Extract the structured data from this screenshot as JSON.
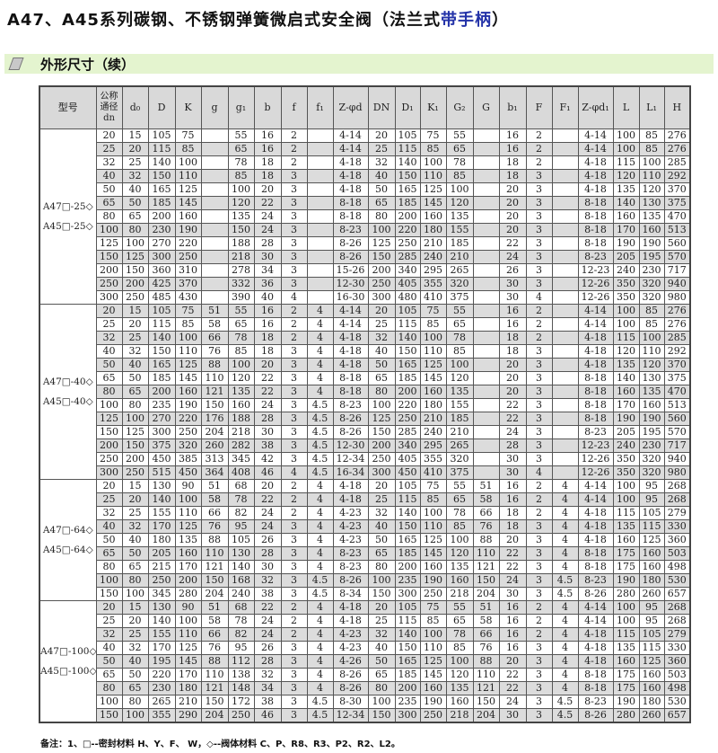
{
  "title": {
    "main": "A47、A45系列碳钢、不锈钢弹簧微启式安全阀（法兰式",
    "accent": "带手柄",
    "end": "）",
    "accent_color": "#2332a8"
  },
  "section": {
    "label": "外形尺寸（续）",
    "icon": "parallelogram-bullet-icon",
    "bg_color": "#e4f4cf"
  },
  "table": {
    "headers": [
      "型号",
      "公称通径dn",
      "d₀",
      "D",
      "K",
      "g",
      "g₁",
      "b",
      "f",
      "f₁",
      "Z-φd",
      "DN",
      "D₁",
      "K₁",
      "G₂",
      "G",
      "b₁",
      "F",
      "F₁",
      "Z-φd₁",
      "L",
      "L₁",
      "H"
    ],
    "groups": [
      {
        "model": [
          "A47□-25◇",
          "A45□-25◇"
        ],
        "rows": [
          [
            "20",
            "15",
            "105",
            "75",
            "",
            "55",
            "16",
            "2",
            "",
            "4-14",
            "20",
            "105",
            "75",
            "55",
            "",
            "16",
            "2",
            "",
            "4-14",
            "100",
            "85",
            "276"
          ],
          [
            "25",
            "20",
            "115",
            "85",
            "",
            "65",
            "16",
            "2",
            "",
            "4-14",
            "25",
            "115",
            "85",
            "65",
            "",
            "16",
            "2",
            "",
            "4-14",
            "100",
            "85",
            "276"
          ],
          [
            "32",
            "25",
            "140",
            "100",
            "",
            "78",
            "18",
            "2",
            "",
            "4-18",
            "32",
            "140",
            "100",
            "78",
            "",
            "18",
            "2",
            "",
            "4-18",
            "115",
            "100",
            "285"
          ],
          [
            "40",
            "32",
            "150",
            "110",
            "",
            "85",
            "18",
            "3",
            "",
            "4-18",
            "40",
            "150",
            "110",
            "85",
            "",
            "18",
            "3",
            "",
            "4-18",
            "120",
            "110",
            "292"
          ],
          [
            "50",
            "40",
            "165",
            "125",
            "",
            "100",
            "20",
            "3",
            "",
            "4-18",
            "50",
            "165",
            "125",
            "100",
            "",
            "20",
            "3",
            "",
            "4-18",
            "135",
            "120",
            "370"
          ],
          [
            "65",
            "50",
            "185",
            "145",
            "",
            "120",
            "22",
            "3",
            "",
            "8-18",
            "65",
            "185",
            "145",
            "120",
            "",
            "20",
            "3",
            "",
            "8-18",
            "140",
            "130",
            "375"
          ],
          [
            "80",
            "65",
            "200",
            "160",
            "",
            "135",
            "24",
            "3",
            "",
            "8-18",
            "80",
            "200",
            "160",
            "135",
            "",
            "20",
            "3",
            "",
            "8-18",
            "160",
            "135",
            "470"
          ],
          [
            "100",
            "80",
            "230",
            "190",
            "",
            "150",
            "24",
            "3",
            "",
            "8-23",
            "100",
            "220",
            "180",
            "155",
            "",
            "20",
            "3",
            "",
            "8-18",
            "170",
            "160",
            "513"
          ],
          [
            "125",
            "100",
            "270",
            "220",
            "",
            "188",
            "28",
            "3",
            "",
            "8-26",
            "125",
            "250",
            "210",
            "185",
            "",
            "22",
            "3",
            "",
            "8-18",
            "190",
            "190",
            "560"
          ],
          [
            "150",
            "125",
            "300",
            "250",
            "",
            "218",
            "30",
            "3",
            "",
            "8-26",
            "150",
            "285",
            "240",
            "210",
            "",
            "24",
            "3",
            "",
            "8-23",
            "205",
            "195",
            "570"
          ],
          [
            "200",
            "150",
            "360",
            "310",
            "",
            "278",
            "34",
            "3",
            "",
            "15-26",
            "200",
            "340",
            "295",
            "265",
            "",
            "26",
            "3",
            "",
            "12-23",
            "240",
            "230",
            "717"
          ],
          [
            "250",
            "200",
            "425",
            "370",
            "",
            "332",
            "36",
            "3",
            "",
            "12-30",
            "250",
            "405",
            "355",
            "320",
            "",
            "30",
            "3",
            "",
            "12-26",
            "350",
            "320",
            "940"
          ],
          [
            "300",
            "250",
            "485",
            "430",
            "",
            "390",
            "40",
            "4",
            "",
            "16-30",
            "300",
            "480",
            "410",
            "375",
            "",
            "30",
            "4",
            "",
            "12-26",
            "350",
            "320",
            "980"
          ]
        ]
      },
      {
        "model": [
          "A47□-40◇",
          "A45□-40◇"
        ],
        "rows": [
          [
            "20",
            "15",
            "105",
            "75",
            "51",
            "55",
            "16",
            "2",
            "4",
            "4-14",
            "20",
            "105",
            "75",
            "55",
            "",
            "16",
            "2",
            "",
            "4-14",
            "100",
            "85",
            "276"
          ],
          [
            "25",
            "20",
            "115",
            "85",
            "58",
            "65",
            "16",
            "2",
            "4",
            "4-14",
            "25",
            "115",
            "85",
            "65",
            "",
            "16",
            "2",
            "",
            "4-14",
            "100",
            "85",
            "276"
          ],
          [
            "32",
            "25",
            "140",
            "100",
            "66",
            "78",
            "18",
            "2",
            "4",
            "4-18",
            "32",
            "140",
            "100",
            "78",
            "",
            "18",
            "2",
            "",
            "4-18",
            "115",
            "100",
            "285"
          ],
          [
            "40",
            "32",
            "150",
            "110",
            "76",
            "85",
            "18",
            "3",
            "4",
            "4-18",
            "40",
            "150",
            "110",
            "85",
            "",
            "18",
            "3",
            "",
            "4-18",
            "120",
            "110",
            "292"
          ],
          [
            "50",
            "40",
            "165",
            "125",
            "88",
            "100",
            "20",
            "3",
            "4",
            "4-18",
            "50",
            "165",
            "125",
            "100",
            "",
            "20",
            "3",
            "",
            "4-18",
            "135",
            "120",
            "370"
          ],
          [
            "65",
            "50",
            "185",
            "145",
            "110",
            "120",
            "22",
            "3",
            "4",
            "8-18",
            "65",
            "185",
            "145",
            "120",
            "",
            "20",
            "3",
            "",
            "8-18",
            "140",
            "130",
            "375"
          ],
          [
            "80",
            "65",
            "200",
            "160",
            "121",
            "135",
            "22",
            "3",
            "4",
            "8-18",
            "80",
            "200",
            "160",
            "135",
            "",
            "20",
            "3",
            "",
            "8-18",
            "160",
            "135",
            "470"
          ],
          [
            "100",
            "80",
            "235",
            "190",
            "150",
            "160",
            "24",
            "3",
            "4.5",
            "8-23",
            "100",
            "220",
            "180",
            "155",
            "",
            "22",
            "3",
            "",
            "8-18",
            "170",
            "160",
            "513"
          ],
          [
            "125",
            "100",
            "270",
            "220",
            "176",
            "188",
            "28",
            "3",
            "4.5",
            "8-26",
            "125",
            "250",
            "210",
            "185",
            "",
            "22",
            "3",
            "",
            "8-18",
            "190",
            "190",
            "560"
          ],
          [
            "150",
            "125",
            "300",
            "250",
            "204",
            "218",
            "30",
            "3",
            "4.5",
            "8-26",
            "150",
            "285",
            "240",
            "210",
            "",
            "24",
            "3",
            "",
            "8-23",
            "205",
            "195",
            "570"
          ],
          [
            "200",
            "150",
            "375",
            "320",
            "260",
            "282",
            "38",
            "3",
            "4.5",
            "12-30",
            "200",
            "340",
            "295",
            "265",
            "",
            "28",
            "3",
            "",
            "12-23",
            "240",
            "230",
            "717"
          ],
          [
            "250",
            "200",
            "450",
            "385",
            "313",
            "345",
            "42",
            "3",
            "4.5",
            "12-34",
            "250",
            "405",
            "355",
            "320",
            "",
            "30",
            "3",
            "",
            "12-26",
            "350",
            "320",
            "940"
          ],
          [
            "300",
            "250",
            "515",
            "450",
            "364",
            "408",
            "46",
            "4",
            "4.5",
            "16-34",
            "300",
            "450",
            "410",
            "375",
            "",
            "30",
            "4",
            "",
            "12-26",
            "350",
            "320",
            "980"
          ]
        ]
      },
      {
        "model": [
          "A47□-64◇",
          "A45□-64◇"
        ],
        "rows": [
          [
            "20",
            "15",
            "130",
            "90",
            "51",
            "68",
            "20",
            "2",
            "4",
            "4-18",
            "20",
            "105",
            "75",
            "55",
            "51",
            "16",
            "2",
            "4",
            "4-14",
            "100",
            "95",
            "268"
          ],
          [
            "25",
            "20",
            "140",
            "100",
            "58",
            "78",
            "22",
            "2",
            "4",
            "4-18",
            "25",
            "115",
            "85",
            "65",
            "58",
            "16",
            "2",
            "4",
            "4-14",
            "100",
            "95",
            "268"
          ],
          [
            "32",
            "25",
            "155",
            "110",
            "66",
            "82",
            "24",
            "2",
            "4",
            "4-23",
            "32",
            "140",
            "100",
            "78",
            "66",
            "18",
            "2",
            "4",
            "4-18",
            "115",
            "105",
            "279"
          ],
          [
            "40",
            "32",
            "170",
            "125",
            "76",
            "95",
            "24",
            "3",
            "4",
            "4-23",
            "40",
            "150",
            "110",
            "85",
            "76",
            "18",
            "3",
            "4",
            "4-18",
            "135",
            "115",
            "330"
          ],
          [
            "50",
            "40",
            "180",
            "135",
            "88",
            "105",
            "26",
            "3",
            "4",
            "4-23",
            "50",
            "165",
            "125",
            "100",
            "88",
            "20",
            "3",
            "4",
            "4-18",
            "160",
            "125",
            "360"
          ],
          [
            "65",
            "50",
            "205",
            "160",
            "110",
            "130",
            "28",
            "3",
            "4",
            "8-23",
            "65",
            "185",
            "145",
            "120",
            "110",
            "22",
            "3",
            "4",
            "8-18",
            "175",
            "160",
            "503"
          ],
          [
            "80",
            "65",
            "215",
            "170",
            "121",
            "140",
            "30",
            "3",
            "4",
            "8-23",
            "80",
            "200",
            "160",
            "135",
            "121",
            "22",
            "3",
            "4",
            "8-18",
            "175",
            "160",
            "498"
          ],
          [
            "100",
            "80",
            "250",
            "200",
            "150",
            "168",
            "32",
            "3",
            "4.5",
            "8-26",
            "100",
            "235",
            "190",
            "160",
            "150",
            "24",
            "3",
            "4.5",
            "8-23",
            "190",
            "180",
            "530"
          ],
          [
            "150",
            "100",
            "345",
            "280",
            "204",
            "240",
            "38",
            "3",
            "4.5",
            "8-34",
            "150",
            "300",
            "250",
            "218",
            "204",
            "30",
            "3",
            "4.5",
            "8-26",
            "280",
            "260",
            "657"
          ]
        ]
      },
      {
        "model": [
          "A47□-100◇",
          "A45□-100◇"
        ],
        "rows": [
          [
            "20",
            "15",
            "130",
            "90",
            "51",
            "68",
            "22",
            "2",
            "4",
            "4-18",
            "20",
            "105",
            "75",
            "55",
            "51",
            "16",
            "2",
            "4",
            "4-14",
            "100",
            "95",
            "268"
          ],
          [
            "25",
            "20",
            "140",
            "100",
            "58",
            "78",
            "24",
            "2",
            "4",
            "4-18",
            "25",
            "115",
            "85",
            "65",
            "58",
            "16",
            "2",
            "4",
            "4-14",
            "100",
            "95",
            "268"
          ],
          [
            "32",
            "25",
            "155",
            "110",
            "66",
            "82",
            "24",
            "2",
            "4",
            "4-23",
            "32",
            "140",
            "100",
            "78",
            "66",
            "16",
            "2",
            "4",
            "4-18",
            "115",
            "105",
            "279"
          ],
          [
            "40",
            "32",
            "170",
            "125",
            "76",
            "95",
            "26",
            "3",
            "4",
            "4-23",
            "40",
            "150",
            "110",
            "85",
            "76",
            "16",
            "3",
            "4",
            "4-18",
            "135",
            "115",
            "330"
          ],
          [
            "50",
            "40",
            "195",
            "145",
            "88",
            "112",
            "28",
            "3",
            "4",
            "4-26",
            "50",
            "165",
            "125",
            "100",
            "88",
            "20",
            "3",
            "4",
            "4-18",
            "160",
            "125",
            "360"
          ],
          [
            "65",
            "50",
            "220",
            "170",
            "110",
            "138",
            "32",
            "3",
            "4",
            "8-26",
            "65",
            "185",
            "145",
            "120",
            "110",
            "22",
            "3",
            "4",
            "8-18",
            "175",
            "160",
            "503"
          ],
          [
            "80",
            "65",
            "230",
            "180",
            "121",
            "148",
            "34",
            "3",
            "4",
            "8-26",
            "80",
            "200",
            "160",
            "135",
            "121",
            "22",
            "3",
            "4",
            "8-18",
            "175",
            "160",
            "498"
          ],
          [
            "100",
            "80",
            "265",
            "210",
            "150",
            "172",
            "38",
            "3",
            "4.5",
            "8-30",
            "100",
            "235",
            "190",
            "160",
            "150",
            "24",
            "3",
            "4.5",
            "8-23",
            "190",
            "180",
            "530"
          ],
          [
            "150",
            "100",
            "355",
            "290",
            "204",
            "250",
            "46",
            "3",
            "4.5",
            "12-34",
            "150",
            "300",
            "250",
            "218",
            "204",
            "30",
            "3",
            "4.5",
            "8-26",
            "280",
            "260",
            "657"
          ]
        ]
      }
    ]
  },
  "note": "备注：1、□--密封材料 H、Y、F、 W，◇--阀体材料  C、P、R8、R3、P2、R2、L2。"
}
